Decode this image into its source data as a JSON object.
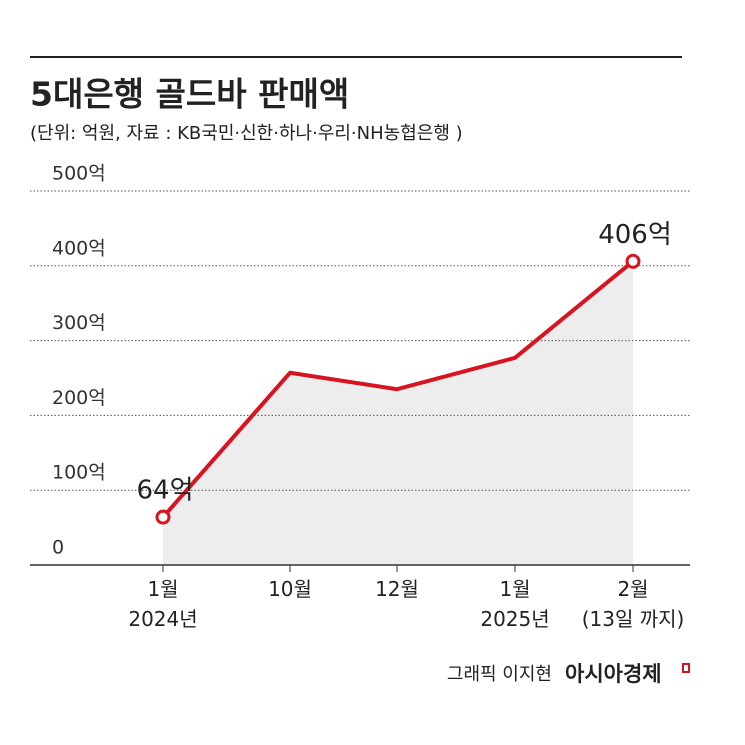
{
  "chart_data": {
    "type": "line",
    "title": "5대은행 골드바 판매액",
    "subtitle": "(단위: 억원, 자료 : KB국민·신한·하나·우리·NH농협은행 )",
    "categories": [
      "1월\n2024년",
      "10월",
      "12월",
      "1월\n2025년",
      "2월\n(13일 까지)"
    ],
    "values": [
      64,
      257,
      235,
      277,
      406
    ],
    "value_labels": [
      "64억",
      null,
      null,
      null,
      "406억"
    ],
    "color": "#d7141f",
    "area_color": "#ededed",
    "ylim": [
      0,
      500
    ],
    "yticks": [
      0,
      {
        "value": 100,
        "label": "100억"
      },
      {
        "value": 200,
        "label": "200억"
      },
      {
        "value": 300,
        "label": "300억"
      },
      {
        "value": 400,
        "label": "400억"
      },
      {
        "value": 500,
        "label": "500억"
      }
    ],
    "grid": true,
    "credit": "그래픽 이지현",
    "publisher": "아시아경제"
  }
}
